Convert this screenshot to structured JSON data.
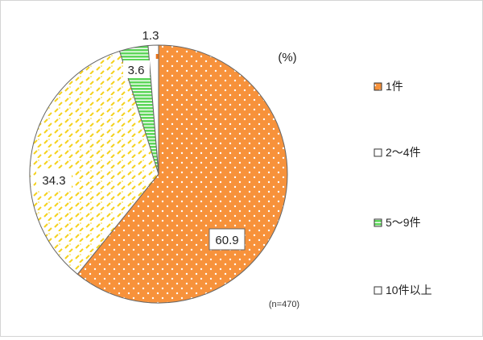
{
  "chart_data": {
    "type": "pie",
    "unit_label": "(%)",
    "note": "(n=470)",
    "categories": [
      "1件",
      "2～4件",
      "5～9件",
      "10件以上"
    ],
    "values": [
      60.9,
      34.3,
      3.6,
      1.3
    ],
    "data_labels": [
      "60.9",
      "34.3",
      "3.6",
      "1.3"
    ],
    "start_angle_deg": 0,
    "direction": "clockwise",
    "legend": "right",
    "colors": {
      "slice_1": "#F7923B",
      "slice_2": "#FFFFFF",
      "slice_2_pattern": "#F5D21E",
      "slice_3": "#5DD65A",
      "slice_4": "#FFFFFF",
      "outline": "#666666",
      "slice_4_accent": "#E8731A"
    }
  }
}
